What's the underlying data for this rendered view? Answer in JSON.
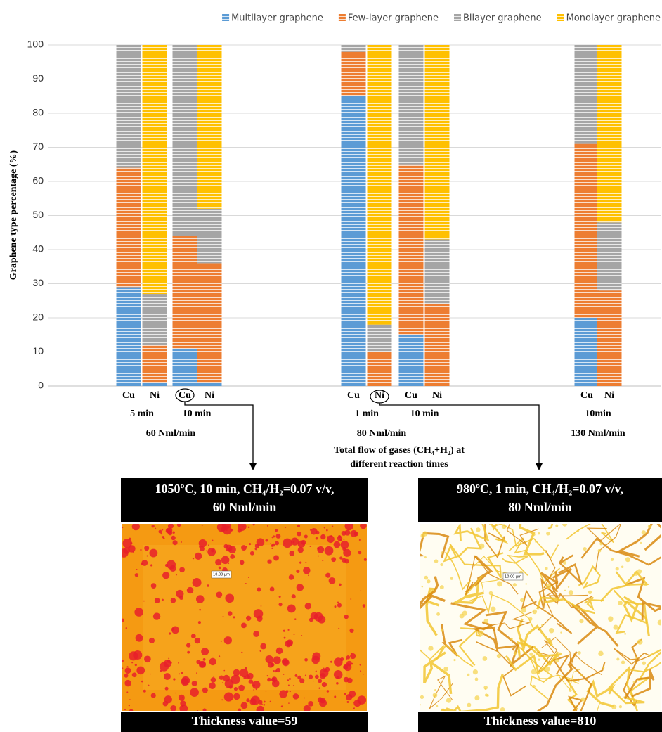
{
  "chart_data": {
    "type": "stacked-bar",
    "y_label": "Graphene type percentage (%)",
    "categories": [
      "Cu",
      "Ni",
      "Cu",
      "Ni",
      "Cu",
      "Ni",
      "Cu",
      "Ni",
      "Cu",
      "Ni"
    ],
    "time_labels": [
      "5 min",
      "10 min",
      "1 min",
      "10 min",
      "10min"
    ],
    "flow_labels": [
      "60 Nml/min",
      "80 Nml/min",
      "130 Nml/min"
    ],
    "x_label": [
      "Total flow of gases (CH₄+H₂) at",
      "different reaction times"
    ],
    "series": [
      {
        "name": "Multilayer graphene",
        "color": "#5b9bd5",
        "values": [
          29,
          1,
          11,
          1,
          85,
          0,
          15,
          0,
          20,
          0
        ]
      },
      {
        "name": "Few-layer graphene",
        "color": "#ed7d31",
        "values": [
          35,
          11,
          33,
          35,
          13,
          10,
          50,
          24,
          51,
          28
        ]
      },
      {
        "name": "Bilayer graphene",
        "color": "#a5a5a5",
        "values": [
          36,
          15,
          56,
          16,
          2,
          8,
          35,
          19,
          29,
          20
        ]
      },
      {
        "name": "Monolayer graphene",
        "color": "#ffc000",
        "values": [
          0,
          73,
          0,
          48,
          0,
          82,
          0,
          57,
          0,
          52
        ]
      }
    ],
    "ylim": [
      0,
      100
    ],
    "yticks": [
      0,
      10,
      20,
      30,
      40,
      50,
      60,
      70,
      80,
      90,
      100
    ],
    "grid": true,
    "legend": "top"
  },
  "panels": [
    {
      "header": [
        "1050ºC, 10 min, CH₄/H₂=0.07 v/v,",
        "60 Nml/min"
      ],
      "scale_label": "10.00 µm",
      "footer": "Thickness value=59"
    },
    {
      "header": [
        "980ºC, 1 min, CH₄/H₂=0.07 v/v,",
        "80 Nml/min"
      ],
      "scale_label": "10.00 µm",
      "footer": "Thickness value=810"
    }
  ]
}
